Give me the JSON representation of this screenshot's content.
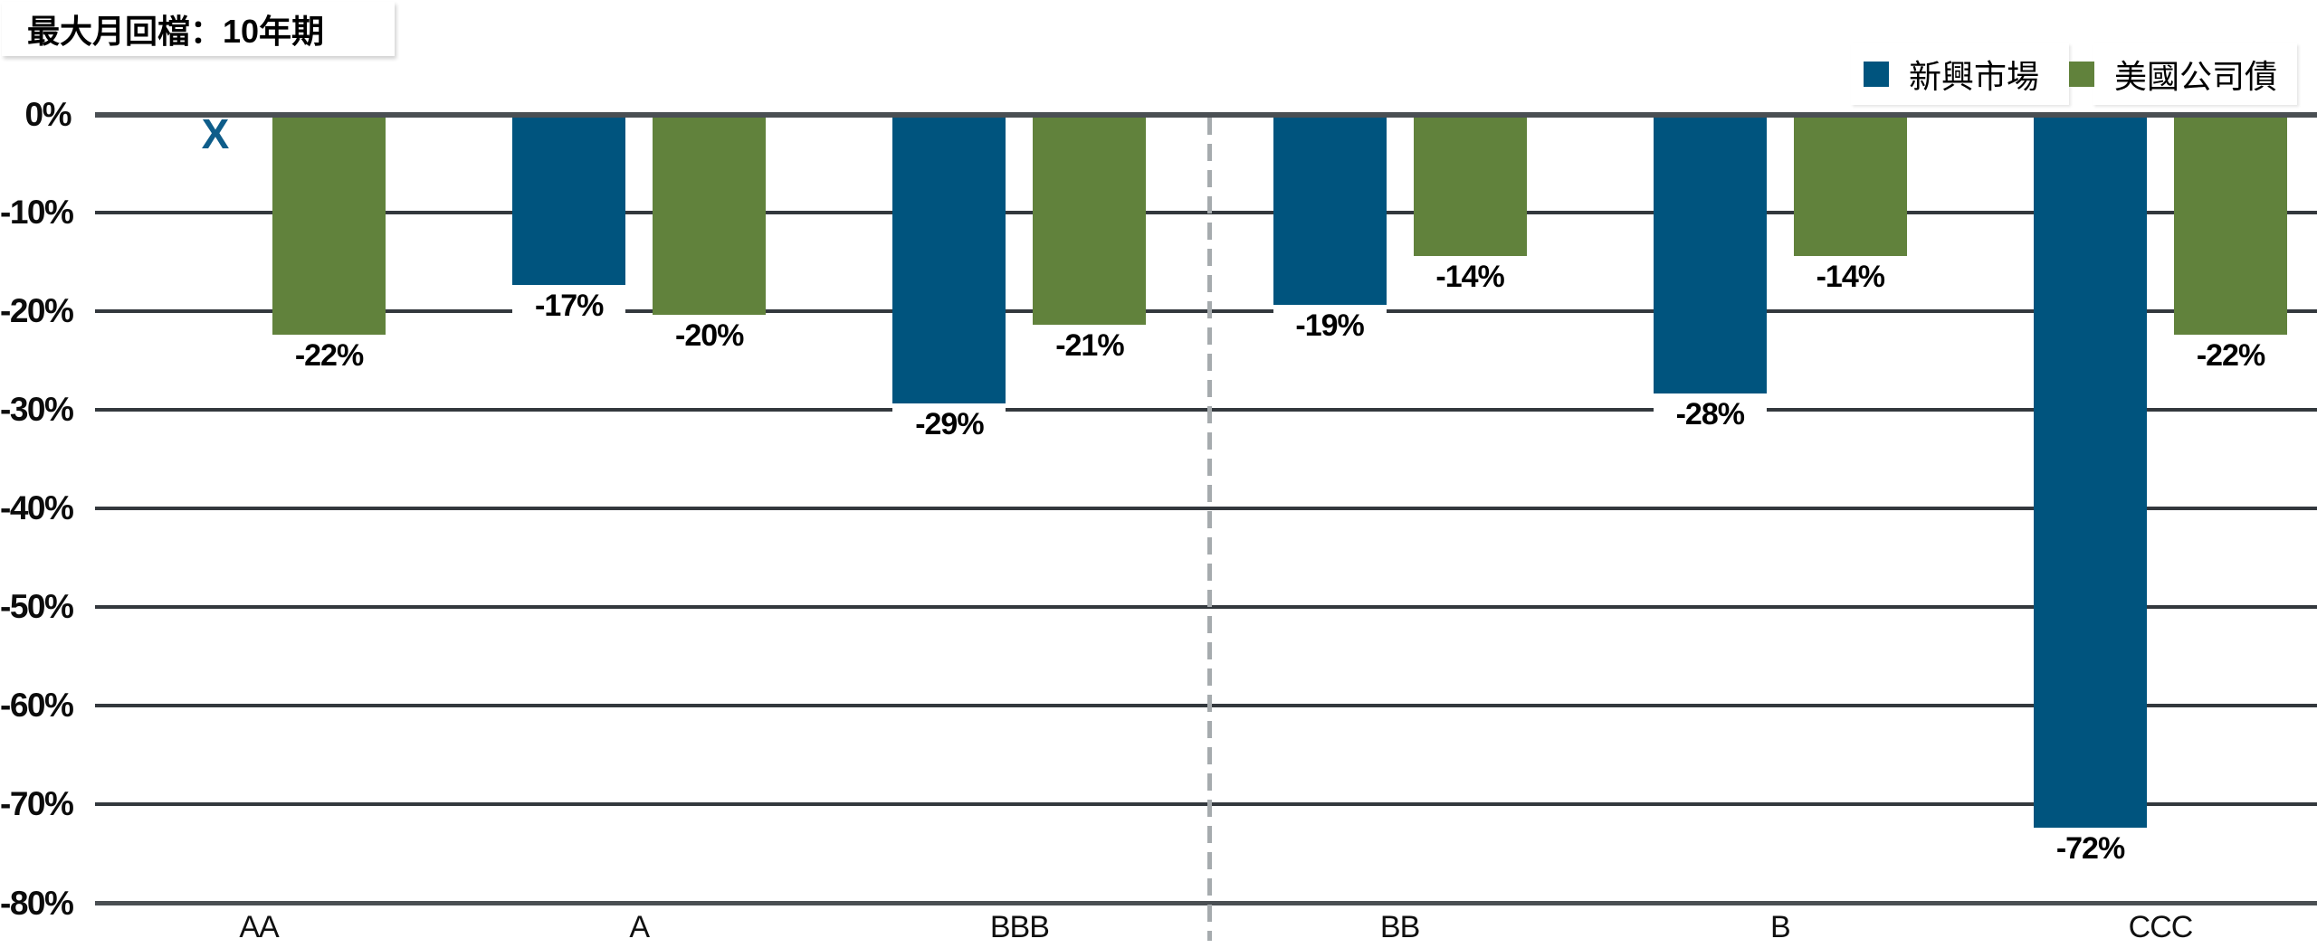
{
  "chart_data": {
    "type": "bar",
    "title": "最大月回檔：10年期",
    "categories": [
      "AA",
      "A",
      "BBB",
      "BB",
      "B",
      "CCC"
    ],
    "series": [
      {
        "name": "新興市場",
        "key": "emerging-markets",
        "color": "#00547E",
        "values": [
          null,
          -17,
          -29,
          -19,
          -28,
          -72
        ],
        "data_labels": [
          null,
          "-17%",
          "-29%",
          "-19%",
          "-28%",
          "-72%"
        ]
      },
      {
        "name": "美國公司債",
        "key": "us-corporate-bonds",
        "color": "#61823C",
        "values": [
          -22,
          -20,
          -21,
          -14,
          -14,
          -22
        ],
        "data_labels": [
          "-22%",
          "-20%",
          "-21%",
          "-14%",
          "-14%",
          "-22%"
        ]
      }
    ],
    "y_axis": {
      "tick_labels": [
        "0%",
        "-10%",
        "-20%",
        "-30%",
        "-40%",
        "-50%",
        "-60%",
        "-70%",
        "-80%"
      ],
      "max": 0,
      "min": -80,
      "unit": "%"
    },
    "no_data_marker": {
      "symbol": "X",
      "category": "AA",
      "series": "新興市場",
      "color": "#0E5D8A"
    },
    "divider": {
      "style": "dashed-vertical",
      "between": [
        "BBB",
        "BB"
      ],
      "color": "#A6ABAE"
    },
    "legend": {
      "position": "top-right",
      "entries": [
        "新興市場",
        "美國公司債"
      ]
    },
    "grid": true,
    "gridline_color": "#33383D",
    "axis_line_color": "#4A4F53",
    "label_box_background": "#FFFFFF"
  }
}
